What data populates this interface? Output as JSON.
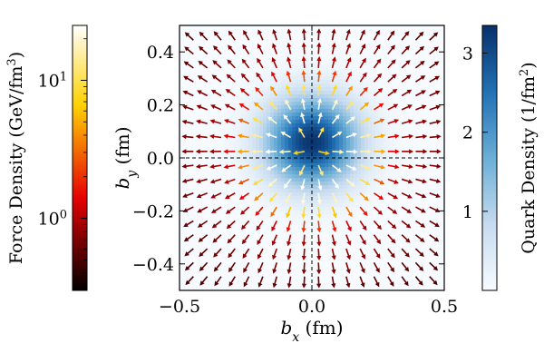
{
  "chart_data": {
    "type": "quiver",
    "axes": {
      "xlabel_base": "b",
      "xlabel_sub": "x",
      "xlabel_unit": " (fm)",
      "ylabel_base": "b",
      "ylabel_sub": "y",
      "ylabel_unit": " (fm)",
      "xlim": [
        -0.5,
        0.5
      ],
      "ylim": [
        -0.5,
        0.5
      ],
      "xticks": [
        -0.5,
        0.0,
        0.5
      ],
      "xtick_labels": [
        "−0.5",
        "0.0",
        "0.5"
      ],
      "yticks": [
        -0.4,
        -0.2,
        0.0,
        0.2,
        0.4
      ],
      "ytick_labels": [
        "−0.4",
        "−0.2",
        "0.0",
        "0.2",
        "0.4"
      ],
      "crosshair": "dashed lines at bx = 0 and by = 0"
    },
    "background_field": {
      "name": "Quark Density",
      "center": [
        0.0,
        0.06
      ],
      "sigma_x": 0.12,
      "sigma_y": 0.115,
      "peak": 3.3,
      "colormap": "Blues"
    },
    "quiver": {
      "grid_x": [
        -0.5,
        0.4444,
        19
      ],
      "grid_y": [
        -0.5,
        0.4444,
        19
      ],
      "note": "Arrows point radially away from the density centre; magnitude shown by hot colormap."
    },
    "colorbar_left": {
      "label": "Force Density (GeV/fm",
      "label_sup": "3",
      "label_tail": ")",
      "scale": "log",
      "range": [
        0.3,
        25
      ],
      "tick_values": [
        1,
        10
      ],
      "tick_labels": [
        {
          "base": "10",
          "exp": "0"
        },
        {
          "base": "10",
          "exp": "1"
        }
      ],
      "colormap": "hot"
    },
    "colorbar_right": {
      "label": "Quark Density (1/fm",
      "label_sup": "2",
      "label_tail": ")",
      "scale": "linear",
      "range": [
        0,
        3.35
      ],
      "tick_values": [
        1,
        2,
        3
      ],
      "tick_labels": [
        "1",
        "2",
        "3"
      ],
      "colormap": "Blues"
    }
  }
}
